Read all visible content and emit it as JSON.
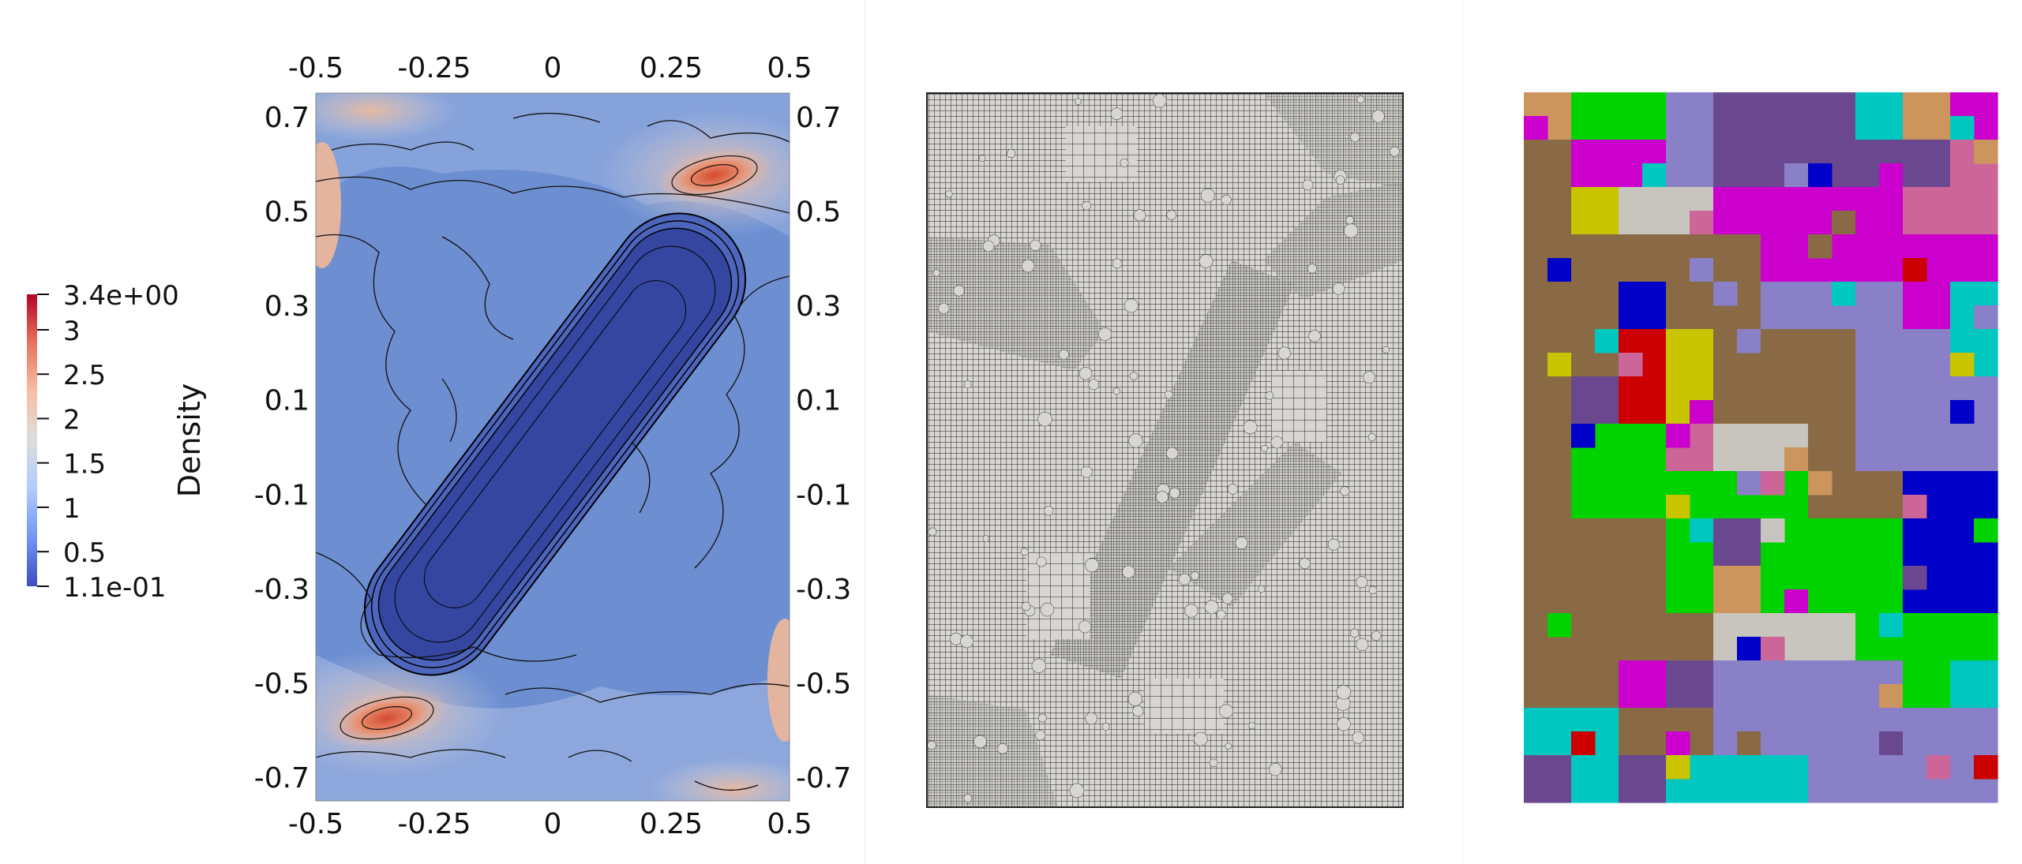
{
  "colorbar": {
    "label": "Density",
    "ticks": [
      "3.4e+00",
      "3",
      "2.5",
      "2",
      "1.5",
      "1",
      "0.5",
      "1.1e-01"
    ],
    "tick_values": [
      3.4,
      3,
      2.5,
      2,
      1.5,
      1,
      0.5,
      0.11
    ],
    "range": [
      0.11,
      3.4
    ],
    "colormap": [
      "#3b4cc0",
      "#7396f5",
      "#b0cbfc",
      "#dddddd",
      "#f6bfa6",
      "#e7745b",
      "#b40426"
    ]
  },
  "density_plot": {
    "x_ticks": [
      "-0.5",
      "-0.25",
      "0",
      "0.25",
      "0.5"
    ],
    "x_tick_values": [
      -0.5,
      -0.25,
      0,
      0.25,
      0.5
    ],
    "y_ticks": [
      "0.7",
      "0.5",
      "0.3",
      "0.1",
      "-0.1",
      "-0.3",
      "-0.5",
      "-0.7"
    ],
    "y_tick_values": [
      0.7,
      0.5,
      0.3,
      0.1,
      -0.1,
      -0.3,
      -0.5,
      -0.7
    ],
    "x_range": [
      -0.5,
      0.5
    ],
    "y_range": [
      -0.75,
      0.75
    ],
    "background_color": "#6d8fd2",
    "core_color": "#3446a0",
    "high_density_color": "#e37a5f"
  },
  "mesh_plot": {
    "background_color": "#d8d6d2",
    "line_color": "#222222"
  },
  "partition_plot": {
    "palette": [
      "#cc955e",
      "#c8c4be",
      "#0000c8",
      "#00d300",
      "#cc0000",
      "#cc00cc",
      "#00c8c0",
      "#cc6699",
      "#6a4890",
      "#8a6a44",
      "#c8c400",
      "#8a80c8"
    ]
  }
}
